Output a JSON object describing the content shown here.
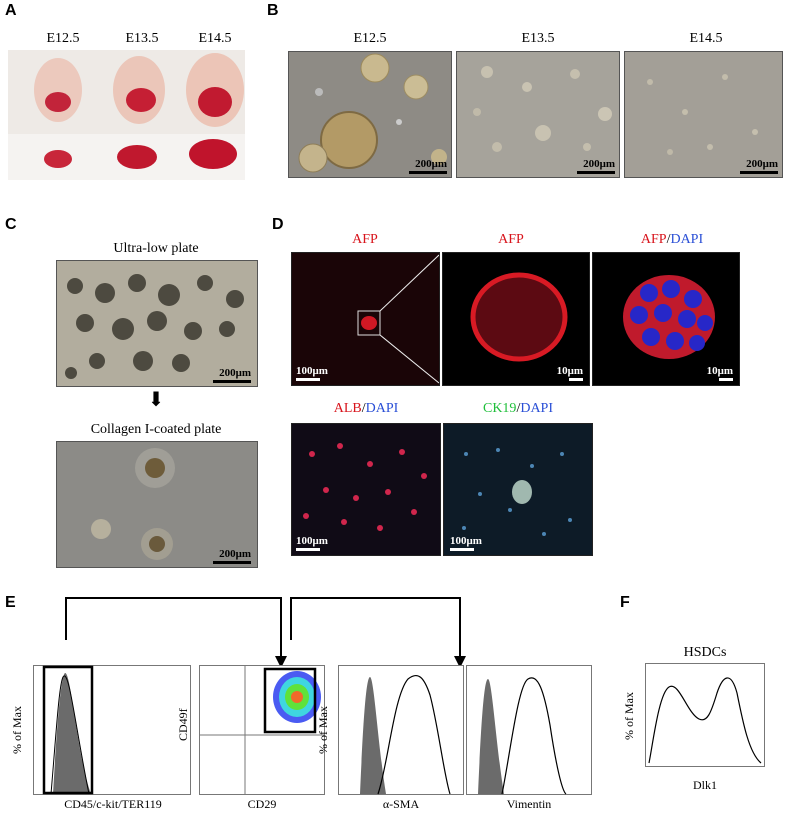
{
  "panels": {
    "a": {
      "label": "A",
      "stages": [
        "E12.5",
        "E13.5",
        "E14.5"
      ]
    },
    "b": {
      "label": "B",
      "stages": [
        "E12.5",
        "E13.5",
        "E14.5"
      ],
      "scale": "200μm"
    },
    "c": {
      "label": "C",
      "title_top": "Ultra-low plate",
      "title_bottom": "Collagen I-coated plate",
      "scale": "200μm",
      "arrow": "⬇"
    },
    "d": {
      "label": "D",
      "afp": "AFP",
      "dapi": "DAPI",
      "slash": "/",
      "alb": "ALB",
      "ck19": "CK19",
      "scale_100": "100μm",
      "scale_10": "10μm"
    },
    "e": {
      "label": "E",
      "ylabel_max": "% of Max",
      "x1": "CD45/c-kit/TER119",
      "x2": "CD29",
      "y2": "CD49f",
      "x3": "α-SMA",
      "x4": "Vimentin"
    },
    "f": {
      "label": "F",
      "title": "HSDCs",
      "ylabel": "% of Max",
      "xlabel": "Dlk1"
    }
  },
  "colors": {
    "afp_red": "#d8141c",
    "dapi_blue": "#2a4fd6",
    "ck19_green": "#1fbf3a"
  }
}
